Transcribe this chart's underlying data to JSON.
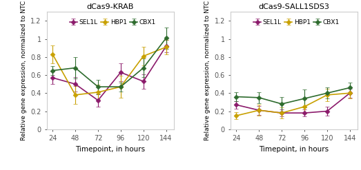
{
  "timepoints": [
    24,
    48,
    72,
    96,
    120,
    144
  ],
  "chart1": {
    "title": "dCas9-KRAB",
    "SEL1L": {
      "y": [
        0.57,
        0.5,
        0.32,
        0.63,
        0.53,
        0.92
      ],
      "yerr": [
        0.07,
        0.08,
        0.07,
        0.1,
        0.08,
        0.07
      ]
    },
    "HBP1": {
      "y": [
        0.83,
        0.38,
        0.41,
        0.47,
        0.81,
        0.91
      ],
      "yerr": [
        0.1,
        0.1,
        0.08,
        0.12,
        0.1,
        0.08
      ]
    },
    "CBX1": {
      "y": [
        0.65,
        0.68,
        0.47,
        0.47,
        0.68,
        1.01
      ],
      "yerr": [
        0.05,
        0.12,
        0.08,
        0.05,
        0.1,
        0.12
      ]
    }
  },
  "chart2": {
    "title": "dCas9-SALL1SDS3",
    "SEL1L": {
      "y": [
        0.27,
        0.21,
        0.18,
        0.18,
        0.2,
        0.4
      ],
      "yerr": [
        0.04,
        0.05,
        0.04,
        0.04,
        0.05,
        0.05
      ]
    },
    "HBP1": {
      "y": [
        0.15,
        0.21,
        0.18,
        0.25,
        0.38,
        0.4
      ],
      "yerr": [
        0.04,
        0.06,
        0.06,
        0.08,
        0.07,
        0.06
      ]
    },
    "CBX1": {
      "y": [
        0.36,
        0.35,
        0.28,
        0.34,
        0.4,
        0.46
      ],
      "yerr": [
        0.05,
        0.06,
        0.08,
        0.1,
        0.06,
        0.06
      ]
    }
  },
  "colors": {
    "SEL1L": "#8B1A6B",
    "HBP1": "#C8A000",
    "CBX1": "#2D6B2D"
  },
  "ylim": [
    0,
    1.3
  ],
  "yticks": [
    0,
    0.2,
    0.4,
    0.6,
    0.8,
    1.0,
    1.2
  ],
  "ytick_labels": [
    "0",
    "0.2",
    "0.4",
    "0.6",
    "0.8",
    "1",
    "1.2"
  ],
  "xlabel": "Timepoint, in hours",
  "ylabel": "Relative gene expression, normalized to NTC",
  "legend_labels": [
    "SEL1L",
    "HBP1",
    "CBX1"
  ],
  "marker": "D",
  "markersize": 3.5,
  "linewidth": 1.2,
  "capsize": 2.5,
  "elinewidth": 0.8,
  "bg_color": "#FFFFFF",
  "panel_bg": "#FFFFFF",
  "border_color": "#CCCCCC"
}
